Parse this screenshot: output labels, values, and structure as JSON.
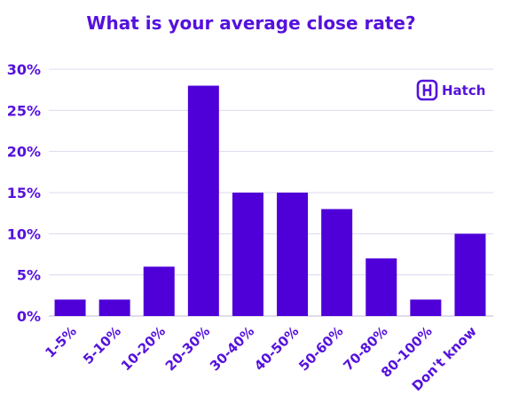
{
  "chart_data": {
    "type": "bar",
    "title": "What is your average close rate?",
    "xlabel": "",
    "ylabel": "",
    "categories": [
      "1-5%",
      "5-10%",
      "10-20%",
      "20-30%",
      "30-40%",
      "40-50%",
      "50-60%",
      "70-80%",
      "80-100%",
      "Don't know"
    ],
    "values": [
      2,
      2,
      6,
      28,
      15,
      15,
      13,
      7,
      2,
      10
    ],
    "ylim": [
      0,
      30
    ],
    "yticks": [
      "0%",
      "5%",
      "10%",
      "15%",
      "20%",
      "25%",
      "30%"
    ],
    "ytick_values": [
      0,
      5,
      10,
      15,
      20,
      25,
      30
    ],
    "grid": true,
    "legend": "none"
  },
  "brand": {
    "name": "Hatch",
    "icon": "hatch-logo-icon"
  },
  "colors": {
    "bar": "#4f00d9",
    "text": "#5511dd",
    "grid": "#dcd8ef",
    "axis": "#bdb7d9"
  }
}
